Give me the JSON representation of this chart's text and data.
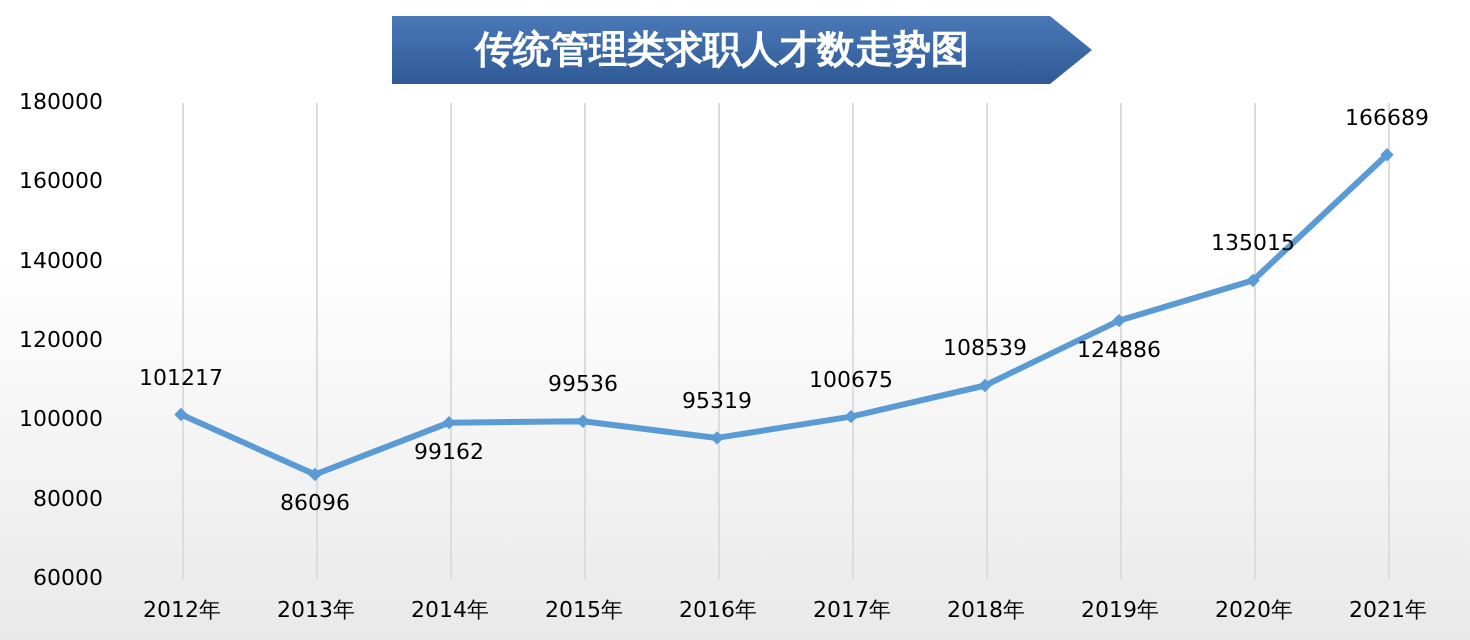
{
  "chart_data": {
    "type": "line",
    "title": "传统管理类求职人才数走势图",
    "categories": [
      "2012年",
      "2013年",
      "2014年",
      "2015年",
      "2016年",
      "2017年",
      "2018年",
      "2019年",
      "2020年",
      "2021年"
    ],
    "series": [
      {
        "color": "#5b9bd5",
        "values": [
          101217,
          86096,
          99162,
          99536,
          95319,
          100675,
          108539,
          124886,
          135015,
          166689
        ]
      }
    ],
    "ylim": [
      60000,
      180000
    ],
    "yticks": [
      60000,
      80000,
      100000,
      120000,
      140000,
      160000,
      180000
    ],
    "grid": "x",
    "marker": "diamond",
    "line_style": "solid",
    "data_labels": true,
    "legend": false
  }
}
